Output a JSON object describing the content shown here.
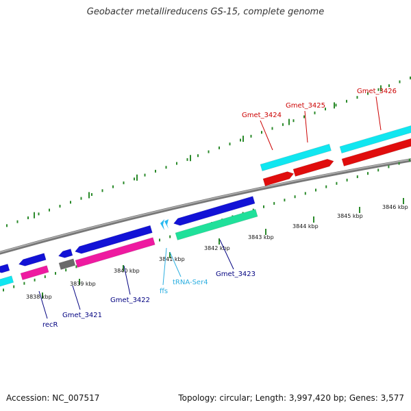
{
  "title": "Geobacter metallireducens GS-15, complete genome",
  "footer": {
    "accession": "Accession: NC_007517",
    "summary": "Topology: circular; Length: 3,997,420 bp; Genes: 3,577"
  },
  "colors": {
    "backbone": "#8c8c8c",
    "ticks": "#2a8a2a",
    "cds_blue": "#1212d6",
    "cds_cyan": "#11e6f0",
    "cds_pink": "#ee1aa0",
    "cds_red": "#e00d0d",
    "cds_green": "#20e09a",
    "cds_gray": "#6a6a6a",
    "trna_cyan": "#28b8f0",
    "label_red": "#cc0000",
    "label_navy": "#000080",
    "label_cyan": "#2aaee0"
  },
  "scale": {
    "ticks": [
      {
        "label": "3838 kbp"
      },
      {
        "label": "3839 kbp"
      },
      {
        "label": "3840 kbp"
      },
      {
        "label": "3841 kbp"
      },
      {
        "label": "3842 kbp"
      },
      {
        "label": "3843 kbp"
      },
      {
        "label": "3844 kbp"
      },
      {
        "label": "3845 kbp"
      },
      {
        "label": "3846 kbp"
      }
    ]
  },
  "labels": [
    {
      "text": "Gmet_3424",
      "color": "label_red"
    },
    {
      "text": "Gmet_3425",
      "color": "label_red"
    },
    {
      "text": "Gmet_3426",
      "color": "label_red"
    },
    {
      "text": "recR",
      "color": "label_navy"
    },
    {
      "text": "Gmet_3421",
      "color": "label_navy"
    },
    {
      "text": "Gmet_3422",
      "color": "label_navy"
    },
    {
      "text": "Gmet_3423",
      "color": "label_navy"
    },
    {
      "text": "ffs",
      "color": "label_cyan"
    },
    {
      "text": "tRNA-Ser4",
      "color": "label_cyan"
    }
  ]
}
